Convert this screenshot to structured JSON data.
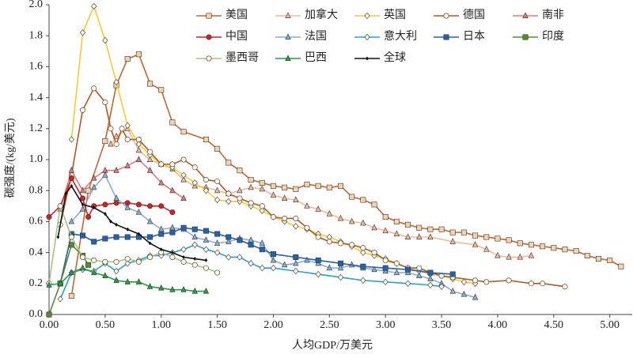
{
  "chart_data": {
    "type": "line",
    "xlabel": "人均GDP/万美元",
    "ylabel": "碳强度/(kg/美元)",
    "xlim": [
      0,
      5.2
    ],
    "ylim": [
      0,
      2.0
    ],
    "xticks": [
      {
        "value": 0,
        "label": "0.00"
      },
      {
        "value": 0.5,
        "label": "0.50"
      },
      {
        "value": 1,
        "label": "1.00"
      },
      {
        "value": 1.5,
        "label": "1.50"
      },
      {
        "value": 2,
        "label": "2.00"
      },
      {
        "value": 2.5,
        "label": "2.50"
      },
      {
        "value": 3,
        "label": "3.00"
      },
      {
        "value": 3.5,
        "label": "3.50"
      },
      {
        "value": 4,
        "label": "4.00"
      },
      {
        "value": 4.5,
        "label": "4.50"
      },
      {
        "value": 5,
        "label": "5.00"
      }
    ],
    "yticks": [
      {
        "value": 0,
        "label": "0.0"
      },
      {
        "value": 0.2,
        "label": "0.2"
      },
      {
        "value": 0.4,
        "label": "0.4"
      },
      {
        "value": 0.6,
        "label": "0.6"
      },
      {
        "value": 0.8,
        "label": "0.8"
      },
      {
        "value": 1,
        "label": "1.0"
      },
      {
        "value": 1.2,
        "label": "1.2"
      },
      {
        "value": 1.4,
        "label": "1.4"
      },
      {
        "value": 1.6,
        "label": "1.6"
      },
      {
        "value": 1.8,
        "label": "1.8"
      },
      {
        "value": 2,
        "label": "2.0"
      }
    ],
    "grid": false,
    "series": [
      {
        "name": "美国",
        "color": "#c8642a",
        "marker": "square",
        "x": [
          0.2,
          0.35,
          0.5,
          0.6,
          0.7,
          0.8,
          0.9,
          1.0,
          1.1,
          1.2,
          1.4,
          1.5,
          1.6,
          1.7,
          1.8,
          1.9,
          2.0,
          2.1,
          2.2,
          2.3,
          2.4,
          2.5,
          2.6,
          2.7,
          2.8,
          2.9,
          3.0,
          3.1,
          3.2,
          3.3,
          3.4,
          3.5,
          3.6,
          3.7,
          3.8,
          3.9,
          4.0,
          4.1,
          4.2,
          4.3,
          4.4,
          4.5,
          4.6,
          4.7,
          4.8,
          4.9,
          5.0,
          5.1
        ],
        "values": [
          0.12,
          0.8,
          1.12,
          1.48,
          1.65,
          1.68,
          1.49,
          1.45,
          1.24,
          1.18,
          1.13,
          1.07,
          0.98,
          0.93,
          0.87,
          0.85,
          0.83,
          0.82,
          0.81,
          0.84,
          0.83,
          0.82,
          0.83,
          0.76,
          0.74,
          0.71,
          0.63,
          0.6,
          0.58,
          0.56,
          0.55,
          0.55,
          0.53,
          0.53,
          0.51,
          0.5,
          0.49,
          0.48,
          0.46,
          0.45,
          0.44,
          0.43,
          0.42,
          0.41,
          0.38,
          0.36,
          0.35,
          0.31
        ]
      },
      {
        "name": "加拿大",
        "color": "#f2b898",
        "marker": "triangle",
        "x": [
          0.55,
          0.6,
          0.7,
          0.8,
          0.9,
          1.0,
          1.1,
          1.2,
          1.3,
          1.4,
          1.5,
          1.6,
          1.7,
          1.8,
          1.9,
          2.0,
          2.1,
          2.2,
          2.3,
          2.4,
          2.5,
          2.6,
          2.7,
          2.8,
          2.9,
          3.0,
          3.1,
          3.2,
          3.3,
          3.4,
          3.6,
          3.8,
          3.9,
          4.0,
          4.1,
          4.2,
          4.3
        ],
        "values": [
          1.1,
          1.15,
          1.2,
          1.06,
          1.0,
          0.97,
          0.94,
          0.87,
          0.83,
          0.82,
          0.8,
          0.78,
          0.8,
          0.82,
          0.81,
          0.77,
          0.75,
          0.74,
          0.7,
          0.68,
          0.65,
          0.62,
          0.6,
          0.59,
          0.56,
          0.54,
          0.52,
          0.5,
          0.5,
          0.5,
          0.47,
          0.45,
          0.42,
          0.38,
          0.37,
          0.37,
          0.38
        ]
      },
      {
        "name": "英国",
        "color": "#f5cc2e",
        "marker": "diamond",
        "x": [
          0.2,
          0.3,
          0.4,
          0.5,
          0.6,
          0.7,
          0.8,
          0.9,
          1.0,
          1.1,
          1.2,
          1.3,
          1.4,
          1.5,
          1.6,
          1.7,
          1.8,
          1.9,
          2.0,
          2.1,
          2.2,
          2.3,
          2.4,
          2.5,
          2.6,
          2.7,
          2.8,
          2.9,
          3.0,
          3.1,
          3.2,
          3.3,
          3.4,
          3.5,
          3.6,
          3.7,
          3.8
        ],
        "values": [
          1.13,
          1.82,
          1.99,
          1.77,
          1.5,
          1.22,
          1.1,
          1.03,
          0.97,
          0.95,
          0.9,
          0.85,
          0.8,
          0.74,
          0.73,
          0.73,
          0.7,
          0.67,
          0.63,
          0.6,
          0.57,
          0.55,
          0.52,
          0.5,
          0.47,
          0.44,
          0.4,
          0.38,
          0.36,
          0.33,
          0.3,
          0.28,
          0.26,
          0.25,
          0.23,
          0.21,
          0.2
        ]
      },
      {
        "name": "德国",
        "color": "#b8561c",
        "marker": "circle",
        "x": [
          0.1,
          0.2,
          0.3,
          0.4,
          0.5,
          0.55,
          0.6,
          0.65,
          0.7,
          0.8,
          0.9,
          1.0,
          1.1,
          1.2,
          1.3,
          1.4,
          1.5,
          1.6,
          1.7,
          1.8,
          1.9,
          2.0,
          2.1,
          2.2,
          2.3,
          2.4,
          2.5,
          2.6,
          2.7,
          2.8,
          2.9,
          3.0,
          3.1,
          3.2,
          3.3,
          3.4,
          3.5,
          3.6,
          3.8,
          3.9,
          4.1,
          4.3,
          4.4,
          4.6
        ],
        "values": [
          0.58,
          0.9,
          1.32,
          1.46,
          1.37,
          1.2,
          1.1,
          1.2,
          1.13,
          1.13,
          1.05,
          0.97,
          0.97,
          1.0,
          0.95,
          0.87,
          0.86,
          0.78,
          0.75,
          0.72,
          0.7,
          0.63,
          0.62,
          0.62,
          0.56,
          0.5,
          0.47,
          0.46,
          0.45,
          0.43,
          0.4,
          0.35,
          0.33,
          0.3,
          0.3,
          0.27,
          0.25,
          0.24,
          0.22,
          0.21,
          0.22,
          0.2,
          0.2,
          0.18
        ]
      },
      {
        "name": "南非",
        "color": "#e07a7a",
        "marker": "triangle",
        "x": [
          0.1,
          0.2,
          0.3,
          0.4,
          0.5,
          0.6,
          0.7,
          0.8,
          0.9,
          1.0,
          1.1,
          1.2
        ],
        "values": [
          0.68,
          0.93,
          0.8,
          0.88,
          0.93,
          0.93,
          0.96,
          1.0,
          0.93,
          0.85,
          0.8,
          0.75
        ]
      },
      {
        "name": "中国",
        "color": "#d42020",
        "marker": "circle",
        "x": [
          0.0,
          0.1,
          0.2,
          0.3,
          0.35,
          0.4,
          0.5,
          0.6,
          0.7,
          0.8,
          0.9,
          1.0,
          1.1
        ],
        "values": [
          0.63,
          0.7,
          0.88,
          0.75,
          0.63,
          0.7,
          0.71,
          0.72,
          0.72,
          0.71,
          0.7,
          0.7,
          0.66
        ]
      },
      {
        "name": "法国",
        "color": "#8cadd0",
        "marker": "triangle",
        "x": [
          0.2,
          0.3,
          0.4,
          0.5,
          0.6,
          0.7,
          0.8,
          0.9,
          1.0,
          1.1,
          1.2,
          1.3,
          1.4,
          1.5,
          1.6,
          1.7,
          1.8,
          1.9,
          2.0,
          2.1,
          2.2,
          2.3,
          2.4,
          2.5,
          2.6,
          2.7,
          2.8,
          2.9,
          3.0,
          3.1,
          3.2,
          3.3,
          3.4,
          3.5,
          3.6,
          3.7,
          3.8
        ],
        "values": [
          0.6,
          0.68,
          0.82,
          0.9,
          0.75,
          0.69,
          0.66,
          0.6,
          0.55,
          0.56,
          0.55,
          0.5,
          0.48,
          0.46,
          0.47,
          0.49,
          0.48,
          0.46,
          0.35,
          0.32,
          0.33,
          0.35,
          0.33,
          0.3,
          0.3,
          0.32,
          0.3,
          0.29,
          0.28,
          0.27,
          0.27,
          0.25,
          0.23,
          0.2,
          0.15,
          0.13,
          0.11
        ]
      },
      {
        "name": "意大利",
        "color": "#1ea2e2",
        "marker": "diamond",
        "x": [
          0.1,
          0.2,
          0.3,
          0.4,
          0.5,
          0.6,
          0.7,
          0.8,
          0.9,
          1.0,
          1.1,
          1.2,
          1.3,
          1.4,
          1.5,
          1.6,
          1.7,
          1.8,
          1.9,
          2.0,
          2.2,
          2.4,
          2.6,
          2.8,
          3.0,
          3.2,
          3.4,
          3.5
        ],
        "values": [
          0.1,
          0.27,
          0.29,
          0.28,
          0.33,
          0.28,
          0.33,
          0.35,
          0.38,
          0.38,
          0.4,
          0.42,
          0.45,
          0.42,
          0.4,
          0.37,
          0.37,
          0.33,
          0.3,
          0.3,
          0.28,
          0.26,
          0.24,
          0.22,
          0.21,
          0.2,
          0.19,
          0.18
        ]
      },
      {
        "name": "日本",
        "color": "#2262b2",
        "marker": "square",
        "x": [
          0.1,
          0.2,
          0.3,
          0.4,
          0.5,
          0.6,
          0.7,
          0.8,
          0.9,
          1.0,
          1.1,
          1.2,
          1.3,
          1.4,
          1.5,
          1.6,
          1.7,
          1.8,
          1.9,
          2.0,
          2.2,
          2.4,
          2.6,
          2.8,
          3.0,
          3.2,
          3.4,
          3.6
        ],
        "values": [
          0.2,
          0.52,
          0.51,
          0.47,
          0.49,
          0.5,
          0.5,
          0.5,
          0.5,
          0.52,
          0.53,
          0.56,
          0.55,
          0.54,
          0.52,
          0.5,
          0.48,
          0.45,
          0.42,
          0.39,
          0.37,
          0.35,
          0.33,
          0.31,
          0.3,
          0.29,
          0.27,
          0.26
        ]
      },
      {
        "name": "印度",
        "color": "#5a8a2e",
        "marker": "square",
        "x": [
          0.0,
          0.1,
          0.2,
          0.3,
          0.35
        ],
        "values": [
          0.0,
          0.2,
          0.45,
          0.38,
          0.32
        ]
      },
      {
        "name": "墨西哥",
        "color": "#a2c482",
        "marker": "circle",
        "x": [
          0.0,
          0.1,
          0.2,
          0.3,
          0.4,
          0.5,
          0.6,
          0.7,
          0.8,
          0.9,
          1.0,
          1.1,
          1.2,
          1.3,
          1.4,
          1.5
        ],
        "values": [
          0.2,
          0.7,
          0.5,
          0.37,
          0.35,
          0.34,
          0.34,
          0.36,
          0.34,
          0.37,
          0.4,
          0.37,
          0.34,
          0.32,
          0.3,
          0.27
        ]
      },
      {
        "name": "巴西",
        "color": "#22a042",
        "marker": "triangle",
        "x": [
          0.0,
          0.1,
          0.2,
          0.3,
          0.4,
          0.5,
          0.6,
          0.7,
          0.8,
          0.9,
          1.0,
          1.1,
          1.2,
          1.3,
          1.4
        ],
        "values": [
          0.19,
          0.2,
          0.27,
          0.3,
          0.27,
          0.25,
          0.22,
          0.21,
          0.21,
          0.18,
          0.17,
          0.16,
          0.16,
          0.15,
          0.15
        ]
      },
      {
        "name": "全球",
        "color": "#111111",
        "marker": "small",
        "x": [
          0.08,
          0.15,
          0.2,
          0.3,
          0.4,
          0.5,
          0.55,
          0.6,
          0.7,
          0.8,
          0.9,
          1.0,
          1.1,
          1.2,
          1.3,
          1.4
        ],
        "values": [
          0.5,
          0.78,
          0.83,
          0.71,
          0.69,
          0.65,
          0.6,
          0.58,
          0.55,
          0.52,
          0.46,
          0.42,
          0.4,
          0.37,
          0.36,
          0.35
        ]
      }
    ]
  }
}
